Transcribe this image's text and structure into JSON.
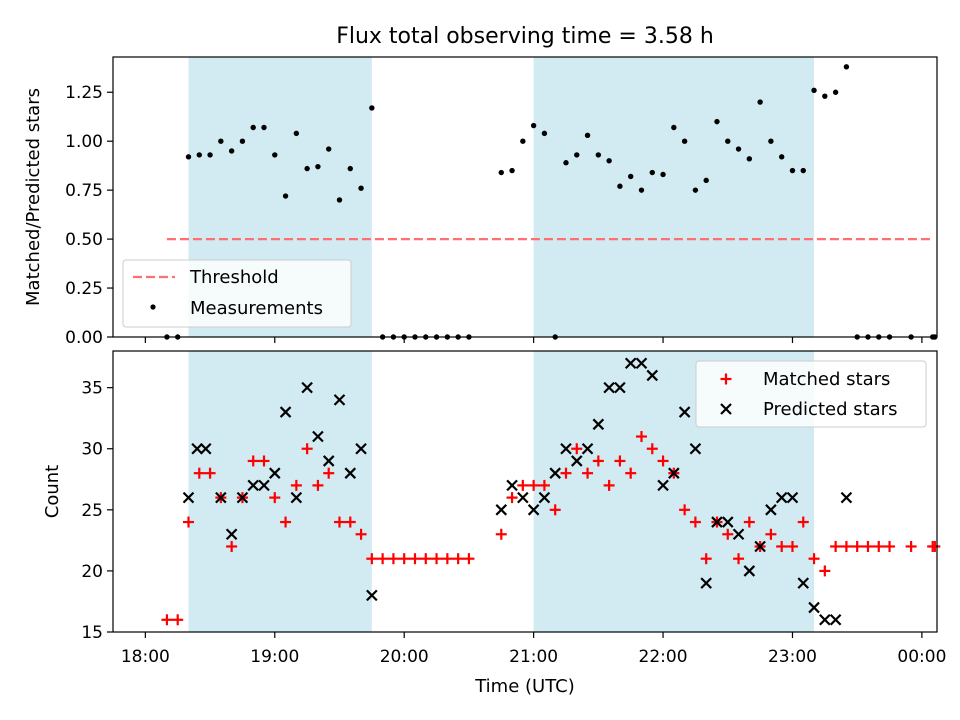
{
  "title": "Flux total observing time = 3.58 h",
  "colors": {
    "shade": "#add8e6",
    "threshold": "#ff6f6f",
    "measurement": "#000000",
    "matched": "#ff0000",
    "predicted": "#000000"
  },
  "chart_data": [
    {
      "type": "scatter",
      "ylabel": "Matched/Predicted stars",
      "xlim_minutes": [
        1065,
        1447
      ],
      "ylim": [
        0,
        1.43
      ],
      "yticks": [
        0,
        0.25,
        0.5,
        0.75,
        1.0,
        1.25
      ],
      "ytick_labels": [
        "0.00",
        "0.25",
        "0.50",
        "0.75",
        "1.00",
        "1.25"
      ],
      "shaded_intervals_minutes": [
        [
          1100,
          1185
        ],
        [
          1260,
          1390
        ]
      ],
      "threshold": {
        "name": "Threshold",
        "y": 0.5,
        "x_minutes": [
          1090,
          1445
        ]
      },
      "legend": {
        "location": "lower-left",
        "entries": [
          "Threshold",
          "Measurements"
        ]
      },
      "series": [
        {
          "name": "Measurements",
          "x_minutes": [
            1090,
            1095,
            1100,
            1105,
            1110,
            1115,
            1120,
            1125,
            1130,
            1135,
            1140,
            1145,
            1150,
            1155,
            1160,
            1165,
            1170,
            1175,
            1180,
            1185,
            1190,
            1195,
            1200,
            1205,
            1210,
            1215,
            1220,
            1225,
            1230,
            1245,
            1250,
            1255,
            1260,
            1265,
            1270,
            1275,
            1280,
            1285,
            1290,
            1295,
            1300,
            1305,
            1310,
            1315,
            1320,
            1325,
            1330,
            1335,
            1340,
            1345,
            1350,
            1355,
            1360,
            1365,
            1370,
            1375,
            1380,
            1385,
            1390,
            1395,
            1400,
            1405,
            1410,
            1415,
            1420,
            1425,
            1435,
            1445,
            1446
          ],
          "y": [
            0,
            0,
            0.92,
            0.93,
            0.93,
            1.0,
            0.95,
            1.0,
            1.07,
            1.07,
            0.93,
            0.72,
            1.04,
            0.86,
            0.87,
            0.96,
            0.7,
            0.86,
            0.76,
            1.17,
            0,
            0,
            0,
            0,
            0,
            0,
            0,
            0,
            0,
            0.84,
            0.85,
            1.0,
            1.08,
            1.04,
            0,
            0.89,
            0.93,
            1.03,
            0.93,
            0.9,
            0.77,
            0.82,
            0.75,
            0.84,
            0.83,
            1.07,
            1.0,
            0.75,
            0.8,
            1.1,
            1.0,
            0.96,
            0.91,
            1.2,
            1.0,
            0.92,
            0.85,
            0.85,
            1.26,
            1.23,
            1.25,
            1.38,
            0,
            0,
            0,
            0,
            0,
            0,
            0
          ]
        }
      ]
    },
    {
      "type": "scatter",
      "xlabel": "Time (UTC)",
      "ylabel": "Count",
      "xlim_minutes": [
        1065,
        1447
      ],
      "ylim": [
        15,
        38
      ],
      "yticks": [
        15,
        20,
        25,
        30,
        35
      ],
      "ytick_labels": [
        "15",
        "20",
        "25",
        "30",
        "35"
      ],
      "xticks_minutes": [
        1080,
        1140,
        1200,
        1260,
        1320,
        1380,
        1440
      ],
      "xtick_labels": [
        "18:00",
        "19:00",
        "20:00",
        "21:00",
        "22:00",
        "23:00",
        "00:00"
      ],
      "shaded_intervals_minutes": [
        [
          1100,
          1185
        ],
        [
          1260,
          1390
        ]
      ],
      "legend": {
        "location": "top-right",
        "entries": [
          "Matched stars",
          "Predicted stars"
        ]
      },
      "series": [
        {
          "name": "Matched stars",
          "x_minutes": [
            1090,
            1095,
            1100,
            1105,
            1110,
            1115,
            1120,
            1125,
            1130,
            1135,
            1140,
            1145,
            1150,
            1155,
            1160,
            1165,
            1170,
            1175,
            1180,
            1185,
            1190,
            1195,
            1200,
            1205,
            1210,
            1215,
            1220,
            1225,
            1230,
            1245,
            1250,
            1255,
            1260,
            1265,
            1270,
            1275,
            1280,
            1285,
            1290,
            1295,
            1300,
            1305,
            1310,
            1315,
            1320,
            1325,
            1330,
            1335,
            1340,
            1345,
            1350,
            1355,
            1360,
            1365,
            1370,
            1375,
            1380,
            1385,
            1390,
            1395,
            1400,
            1405,
            1410,
            1415,
            1420,
            1425,
            1435,
            1445,
            1446
          ],
          "y": [
            16,
            16,
            24,
            28,
            28,
            26,
            22,
            26,
            29,
            29,
            26,
            24,
            27,
            30,
            27,
            28,
            24,
            24,
            23,
            21,
            21,
            21,
            21,
            21,
            21,
            21,
            21,
            21,
            21,
            23,
            26,
            27,
            27,
            27,
            25,
            28,
            30,
            28,
            29,
            27,
            29,
            28,
            31,
            30,
            29,
            28,
            25,
            24,
            21,
            24,
            23,
            21,
            24,
            22,
            23,
            22,
            22,
            24,
            21,
            20,
            22,
            22,
            22,
            22,
            22,
            22,
            22,
            22,
            22
          ]
        },
        {
          "name": "Predicted stars",
          "x_minutes": [
            1100,
            1104,
            1108,
            1115,
            1120,
            1125,
            1130,
            1135,
            1140,
            1145,
            1150,
            1155,
            1160,
            1165,
            1170,
            1175,
            1180,
            1185,
            1245,
            1250,
            1255,
            1260,
            1265,
            1270,
            1275,
            1280,
            1285,
            1290,
            1295,
            1300,
            1305,
            1310,
            1315,
            1320,
            1325,
            1330,
            1335,
            1340,
            1345,
            1350,
            1355,
            1360,
            1365,
            1370,
            1375,
            1380,
            1385,
            1390,
            1395,
            1400,
            1405
          ],
          "y": [
            26,
            30,
            30,
            26,
            23,
            26,
            27,
            27,
            28,
            33,
            26,
            35,
            31,
            29,
            34,
            28,
            30,
            18,
            25,
            27,
            26,
            25,
            26,
            28,
            30,
            29,
            30,
            32,
            35,
            35,
            37,
            37,
            36,
            27,
            28,
            33,
            30,
            19,
            24,
            24,
            23,
            20,
            22,
            25,
            26,
            26,
            19,
            17,
            16,
            16,
            26
          ]
        }
      ]
    }
  ]
}
